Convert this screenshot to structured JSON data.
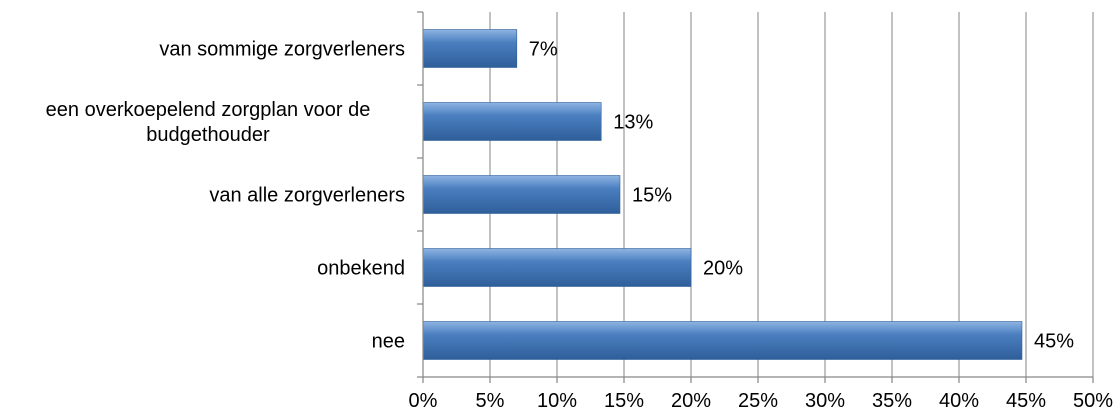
{
  "chart_data": {
    "type": "bar",
    "orientation": "horizontal",
    "categories": [
      "van sommige zorgverleners",
      [
        "een overkoepelend zorgplan voor de",
        "budgethouder"
      ],
      "van alle zorgverleners",
      "onbekend",
      "nee"
    ],
    "values": [
      7,
      13.3,
      14.7,
      20,
      44.7
    ],
    "data_labels": [
      "7%",
      "13%",
      "15%",
      "20%",
      "45%"
    ],
    "xlim": [
      0,
      50
    ],
    "x_ticks": [
      0,
      5,
      10,
      15,
      20,
      25,
      30,
      35,
      40,
      45,
      50
    ],
    "x_tick_labels": [
      "0%",
      "5%",
      "10%",
      "15%",
      "20%",
      "25%",
      "30%",
      "35%",
      "40%",
      "45%",
      "50%"
    ],
    "title": "",
    "xlabel": "",
    "ylabel": "",
    "grid": "vertical",
    "legend": "none",
    "bar_color": "#4a7ebf",
    "bar_color_light": "#8fb4e3",
    "bar_color_dark": "#2f5f9a",
    "grid_color": "#868686"
  }
}
